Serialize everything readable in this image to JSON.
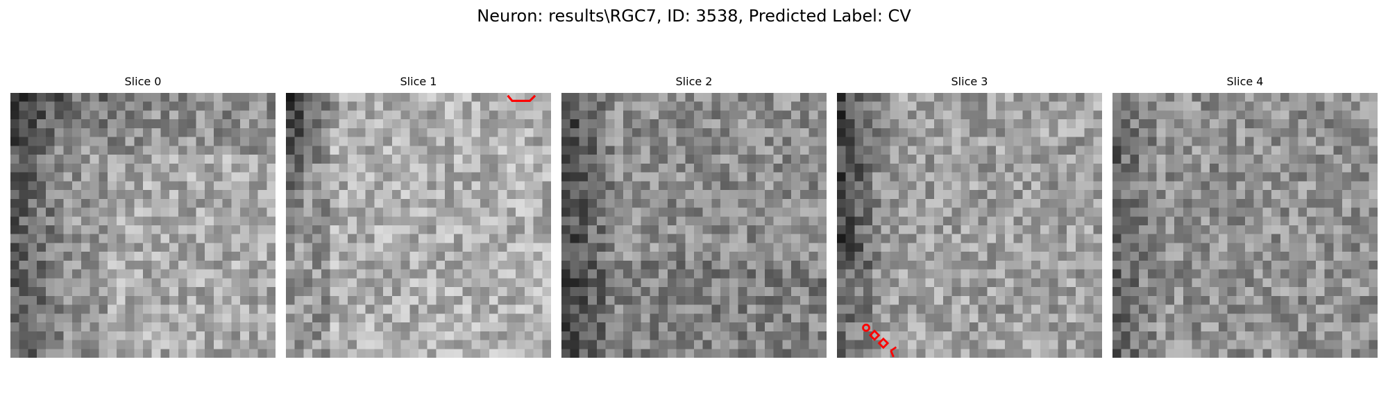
{
  "figure": {
    "title": "Neuron: results\\RGC7, ID: 3538, Predicted Label: CV"
  },
  "panels": [
    {
      "title": "Slice 0"
    },
    {
      "title": "Slice 1"
    },
    {
      "title": "Slice 2"
    },
    {
      "title": "Slice 3"
    },
    {
      "title": "Slice 4"
    }
  ],
  "colors": {
    "background": "#ffffff",
    "colormap": "gray",
    "annotation": "#ff0000"
  }
}
